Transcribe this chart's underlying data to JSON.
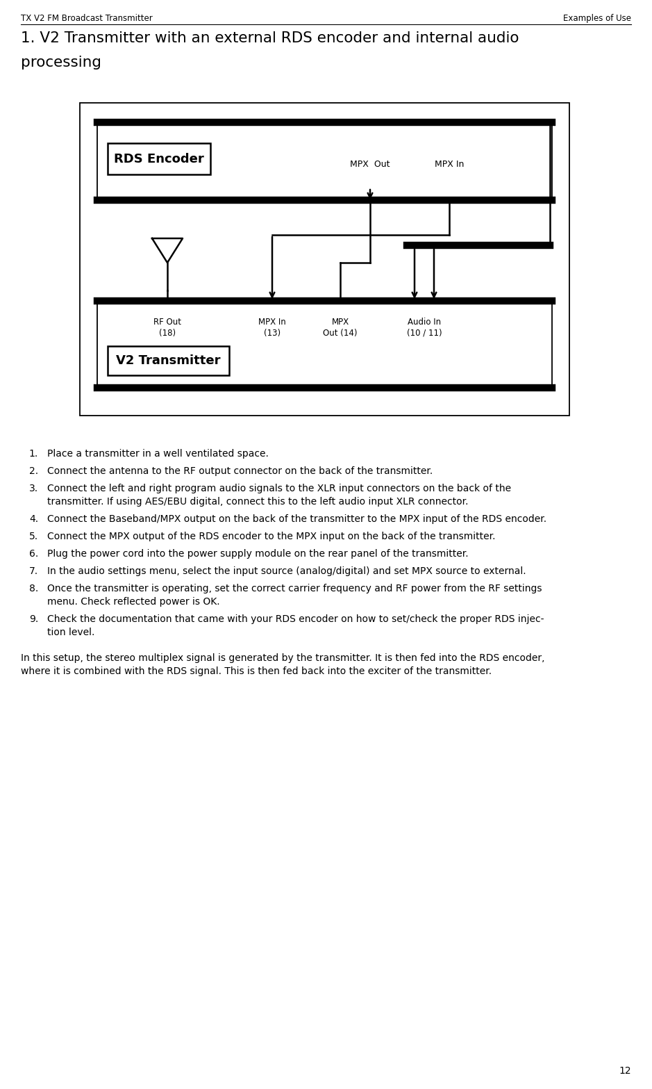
{
  "header_left": "TX V2 FM Broadcast Transmitter",
  "header_right": "Examples of Use",
  "page_number": "12",
  "title_line1": "1. V2 Transmitter with an external RDS encoder and internal audio",
  "title_line2": "processing",
  "diagram": {
    "rds_box_label": "RDS Encoder",
    "transmitter_box_label": "V2 Transmitter",
    "mpx_out_label": "MPX  Out",
    "mpx_in_label": "MPX In",
    "rf_out_line1": "RF Out",
    "rf_out_line2": "(18)",
    "mpx_in_13_line1": "MPX In",
    "mpx_in_13_line2": "(13)",
    "mpx_out_14_line1": "MPX",
    "mpx_out_14_line2": "Out (14)",
    "audio_in_line1": "Audio In",
    "audio_in_line2": "(10 / 11)"
  },
  "instructions": [
    "Place a transmitter in a well ventilated space.",
    "Connect the antenna to the RF output connector on the back of the transmitter.",
    "Connect the left and right program audio signals to the XLR input connectors on the back of the\ntransmitter. If using AES/EBU digital, connect this to the left audio input XLR connector.",
    "Connect the Baseband/MPX output on the back of the transmitter to the MPX input of the RDS encoder.",
    "Connect the MPX output of the RDS encoder to the MPX input on the back of the transmitter.",
    "Plug the power cord into the power supply module on the rear panel of the transmitter.",
    "In the audio settings menu, select the input source (analog/digital) and set MPX source to external.",
    "Once the transmitter is operating, set the correct carrier frequency and RF power from the RF settings\nmenu. Check reflected power is OK.",
    "Check the documentation that came with your RDS encoder on how to set/check the proper RDS injec-\ntion level."
  ],
  "footer_line1": "In this setup, the stereo multiplex signal is generated by the transmitter. It is then fed into the RDS encoder,",
  "footer_line2": "where it is combined with the RDS signal. This is then fed back into the exciter of the transmitter.",
  "bg_color": "#ffffff",
  "text_color": "#000000"
}
